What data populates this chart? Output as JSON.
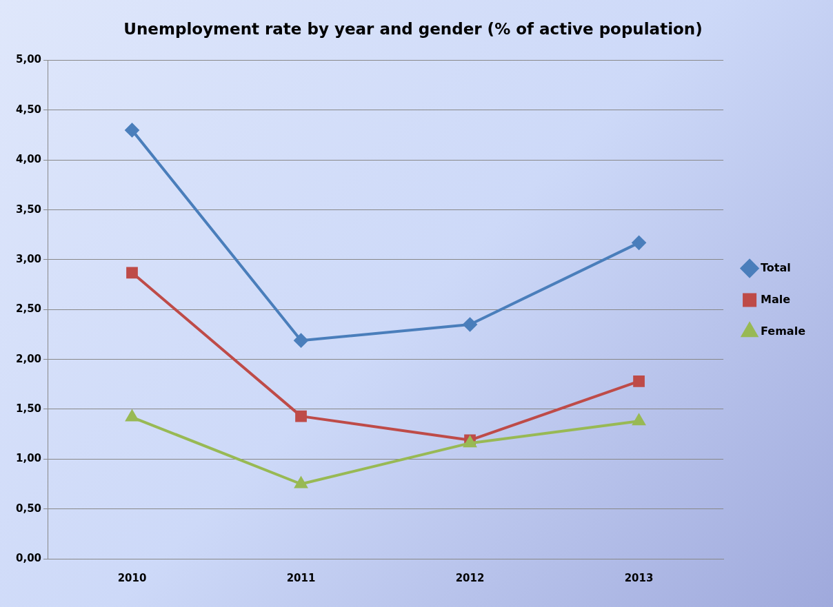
{
  "chart_data": {
    "type": "line",
    "title": "Unemployment rate by year and gender (% of active population)",
    "categories": [
      "2010",
      "2011",
      "2012",
      "2013"
    ],
    "series": [
      {
        "name": "Total",
        "color": "#4a7ebb",
        "marker": "diamond",
        "values": [
          4.3,
          2.19,
          2.35,
          3.17
        ]
      },
      {
        "name": "Male",
        "color": "#be4b48",
        "marker": "square",
        "values": [
          2.87,
          1.43,
          1.19,
          1.78
        ]
      },
      {
        "name": "Female",
        "color": "#98b954",
        "marker": "triangle",
        "values": [
          1.42,
          0.75,
          1.16,
          1.38
        ]
      }
    ],
    "ylim": [
      0,
      5
    ],
    "yticks": [
      {
        "value": 0,
        "label": "0,00"
      },
      {
        "value": 0.5,
        "label": "0,50"
      },
      {
        "value": 1,
        "label": "1,00"
      },
      {
        "value": 1.5,
        "label": "1,50"
      },
      {
        "value": 2,
        "label": "2,00"
      },
      {
        "value": 2.5,
        "label": "2,50"
      },
      {
        "value": 3,
        "label": "3,00"
      },
      {
        "value": 3.5,
        "label": "3,50"
      },
      {
        "value": 4,
        "label": "4,00"
      },
      {
        "value": 4.5,
        "label": "4,50"
      },
      {
        "value": 5,
        "label": "5,00"
      }
    ],
    "grid": "y",
    "legend": "right",
    "line_style": "solid"
  }
}
